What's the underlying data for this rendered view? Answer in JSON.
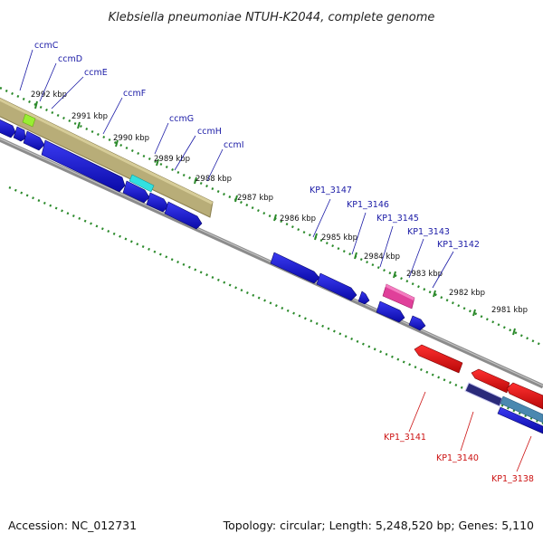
{
  "title": "Klebsiella pneumoniae NTUH-K2044, complete genome",
  "footer": {
    "accession": "Accession: NC_012731",
    "summary": "Topology: circular; Length: 5,248,520 bp; Genes: 5,110"
  },
  "ticks": [
    "2992 kbp",
    "2991 kbp",
    "2990 kbp",
    "2989 kbp",
    "2988 kbp",
    "2987 kbp",
    "2986 kbp",
    "2985 kbp",
    "2984 kbp",
    "2983 kbp",
    "2982 kbp",
    "2981 kbp"
  ],
  "forward_genes": [
    "ccmC",
    "ccmD",
    "ccmE",
    "ccmF",
    "ccmG",
    "ccmH",
    "ccmI",
    "KP1_3147",
    "KP1_3146",
    "KP1_3145",
    "KP1_3143",
    "KP1_3142"
  ],
  "reverse_genes": [
    "KP1_3141",
    "KP1_3140",
    "KP1_3138"
  ],
  "colors": {
    "forward_cds": "#1414d2",
    "reverse_cds": "#e01010",
    "operon_band": "#b8ad78",
    "backbone": "#8c8c8c",
    "ticks": "#2b8a2b",
    "highlight_green": "#99ee33",
    "highlight_cyan": "#33e0e0",
    "highlight_magenta": "#e0409a",
    "highlight_navy": "#2a2a7a",
    "highlight_steel": "#4a88b0"
  }
}
